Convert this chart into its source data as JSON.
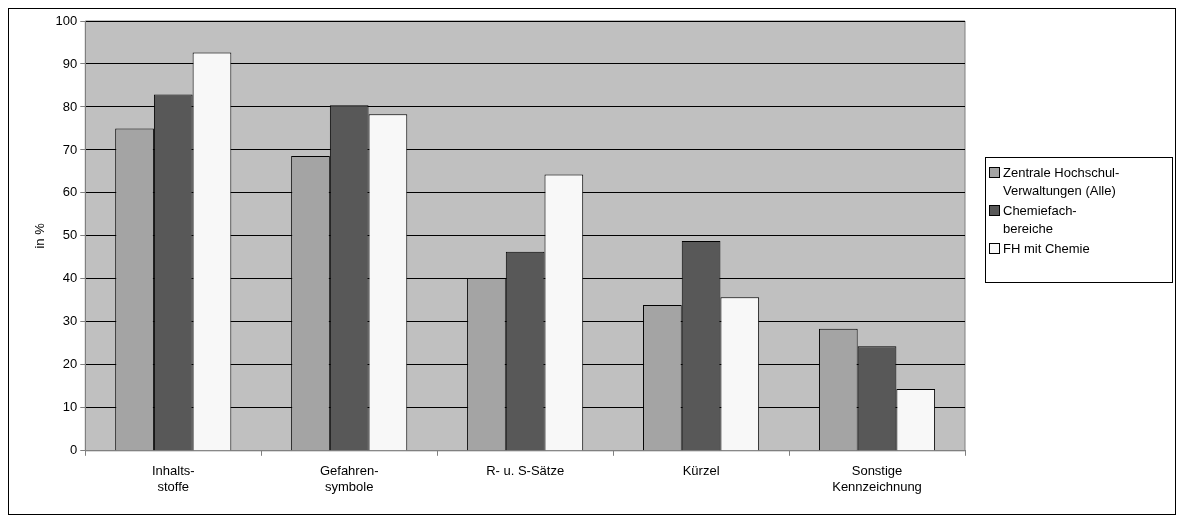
{
  "chart_data": {
    "type": "bar",
    "ylabel": "in %",
    "categories": [
      "Inhalts-\nstoffe",
      "Gefahren-\nsymbole",
      "R- u. S-Sätze",
      "Kürzel",
      "Sonstige\nKennzeichnung"
    ],
    "series": [
      {
        "name": "Zentrale Hochschul-Verwaltungen (Alle)",
        "color": "#a4a4a4",
        "values": [
          75.0,
          68.6,
          40.2,
          33.9,
          28.4
        ]
      },
      {
        "name": "Chemiefach-bereiche",
        "color": "#585858",
        "values": [
          82.9,
          80.4,
          46.3,
          48.8,
          24.3
        ]
      },
      {
        "name": "FH mit Chemie",
        "color": "#f8f8f8",
        "values": [
          92.7,
          78.3,
          64.3,
          35.7,
          14.4
        ]
      }
    ],
    "ylim": [
      0,
      100
    ],
    "yticks": [
      0,
      10,
      20,
      30,
      40,
      50,
      60,
      70,
      80,
      90,
      100
    ],
    "grid": "y",
    "legend": "right"
  }
}
